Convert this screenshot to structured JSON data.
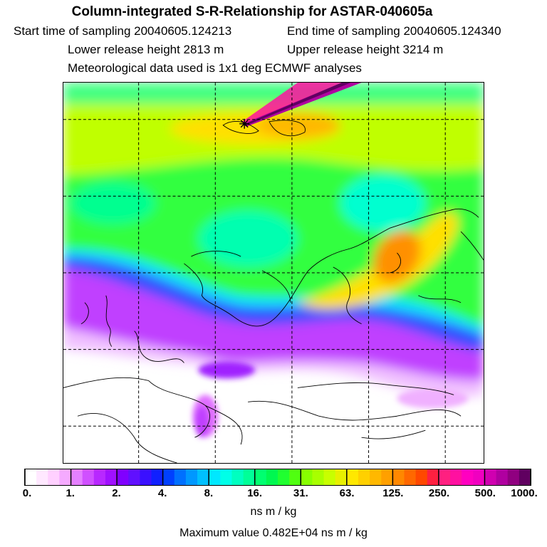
{
  "header": {
    "title": "Column-integrated S-R-Relationship for ASTAR-040605a",
    "start_time": "Start time of sampling 20040605.124213",
    "end_time": "End time of sampling 20040605.124340",
    "lower_height": "Lower release height 2813 m",
    "upper_height": "Upper release height 3214 m",
    "met_data": "Meteorological data used is 1x1 deg ECMWF analyses"
  },
  "colorbar": {
    "ticks": [
      "0.",
      "1.",
      "2.",
      "4.",
      "8.",
      "16.",
      "31.",
      "63.",
      "125.",
      "250.",
      "500.",
      "1000."
    ],
    "colors": [
      "#ffffff",
      "#ffe8ff",
      "#ffd0ff",
      "#f5aaff",
      "#e580ff",
      "#d050ff",
      "#b828ff",
      "#a010ff",
      "#8000ff",
      "#6010ff",
      "#3a10ff",
      "#1020ff",
      "#0040ff",
      "#0070ff",
      "#0098ff",
      "#00c0ff",
      "#00e8ff",
      "#00ffe8",
      "#00ffc0",
      "#00ff98",
      "#00ff70",
      "#00f850",
      "#20ff30",
      "#50ff10",
      "#88ff00",
      "#a8ff00",
      "#c8ff00",
      "#e8f000",
      "#ffe800",
      "#ffd000",
      "#ffb800",
      "#ffa000",
      "#ff8800",
      "#ff6800",
      "#ff4800",
      "#ff2040",
      "#ff2080",
      "#ff10a0",
      "#ff00c0",
      "#f000c0",
      "#d000b0",
      "#b000a0",
      "#900080",
      "#600060"
    ],
    "unit": "ns m / kg",
    "maximum": "Maximum value  0.482E+04 ns m / kg"
  },
  "map": {
    "release_marker": "star-marker"
  }
}
